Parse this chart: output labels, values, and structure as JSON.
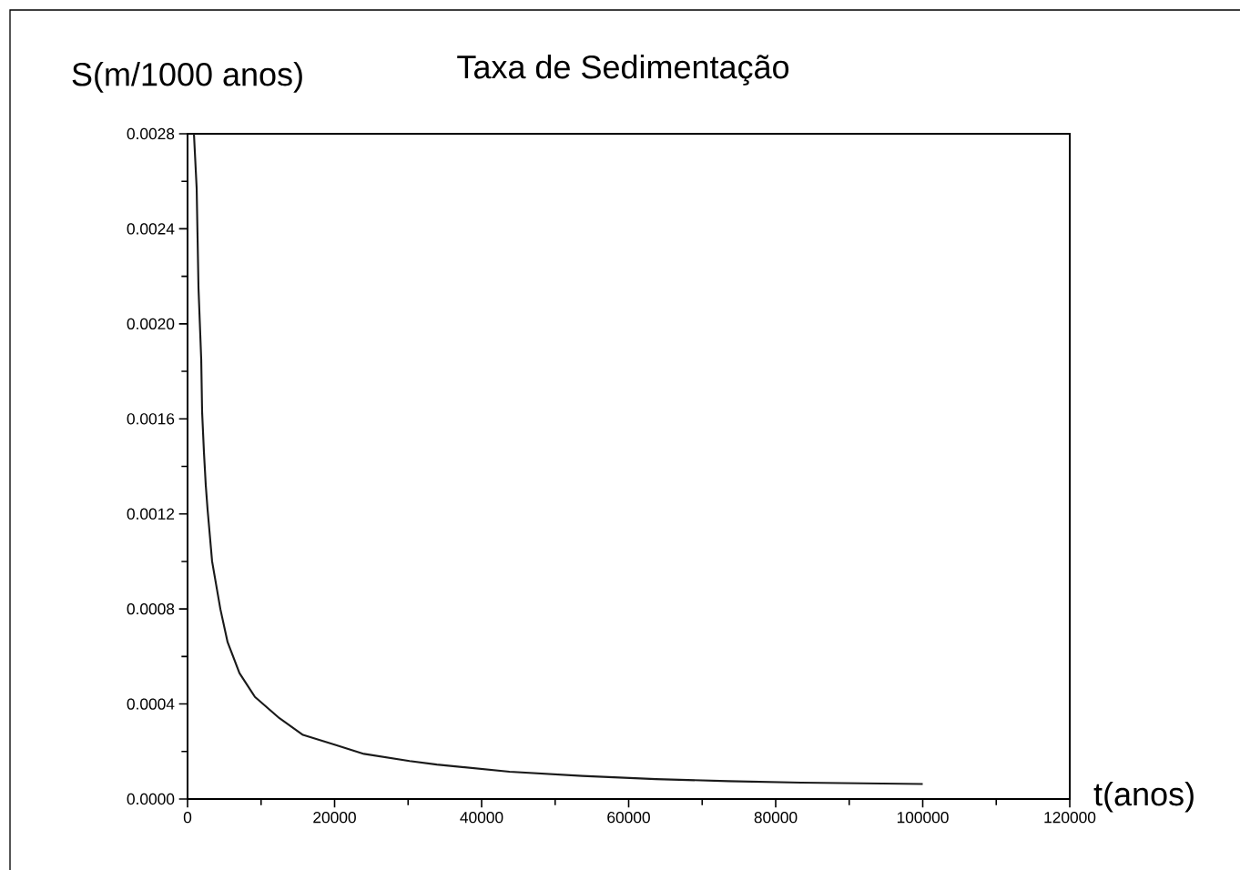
{
  "chart_data": {
    "type": "line",
    "title": "Taxa de Sedimentação",
    "xlabel": "t(anos)",
    "ylabel": "S(m/1000 anos)",
    "x": [
      870,
      1240,
      1490,
      1860,
      1980,
      2230,
      2480,
      2720,
      3340,
      4460,
      5450,
      7060,
      9160,
      12500,
      15700,
      19900,
      24000,
      30200,
      33900,
      43800,
      53700,
      63700,
      73600,
      83500,
      100000
    ],
    "values": [
      0.0028,
      0.00257,
      0.00215,
      0.00185,
      0.00163,
      0.00146,
      0.00132,
      0.00122,
      0.001,
      0.0008,
      0.00066,
      0.00053,
      0.00043,
      0.00034,
      0.00027,
      0.00023,
      0.00019,
      0.00016,
      0.000145,
      0.000115,
      9.7e-05,
      8.4e-05,
      7.5e-05,
      6.9e-05,
      6.3e-05
    ],
    "color": "#1a1a1a",
    "xlim": [
      0,
      120000
    ],
    "ylim": [
      0,
      0.0028
    ],
    "xticks": [
      0,
      20000,
      40000,
      60000,
      80000,
      100000,
      120000
    ],
    "yticks": [
      {
        "value": 0,
        "label": "0.0000"
      },
      {
        "value": 0.0004,
        "label": "0.0004"
      },
      {
        "value": 0.0008,
        "label": "0.0008"
      },
      {
        "value": 0.0012,
        "label": "0.0012"
      },
      {
        "value": 0.0016,
        "label": "0.0016"
      },
      {
        "value": 0.002,
        "label": "0.0020"
      },
      {
        "value": 0.0024,
        "label": "0.0024"
      },
      {
        "value": 0.0028,
        "label": "0.0028"
      }
    ]
  }
}
